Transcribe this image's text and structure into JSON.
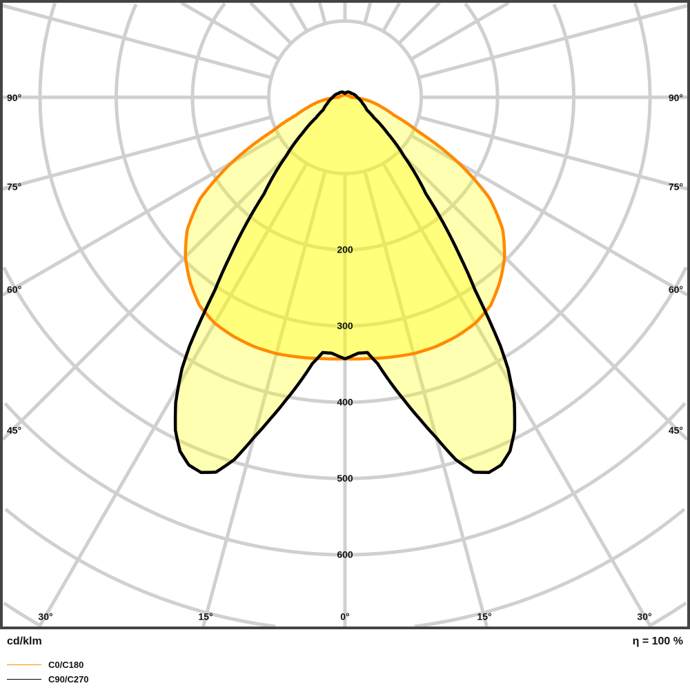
{
  "chart_data": {
    "type": "polar",
    "unit_label": "cd/klm",
    "efficiency_label": "η = 100 %",
    "radial_ticks": [
      100,
      200,
      300,
      400,
      500,
      600,
      700,
      800
    ],
    "radial_tick_labels": [
      "200",
      "300",
      "400",
      "500",
      "600"
    ],
    "angle_ticks_deg": [
      0,
      15,
      30,
      45,
      60,
      75,
      90,
      105,
      120,
      135,
      150,
      165,
      180
    ],
    "angle_labels_left": [
      "90°",
      "75°",
      "60°",
      "45°",
      "30°",
      "15°"
    ],
    "angle_label_center": "0°",
    "angle_labels_right": [
      "15°",
      "30°",
      "45°",
      "60°",
      "75°",
      "90°"
    ],
    "grid": true,
    "symmetric": true,
    "series": [
      {
        "name": "C0/C180",
        "color": "#ff8a00",
        "angles_deg": [
          0,
          5,
          10,
          15,
          20,
          25,
          30,
          35,
          40,
          45,
          50,
          55,
          60,
          65,
          70,
          75,
          80,
          85,
          90,
          120,
          180
        ],
        "values": [
          343,
          344,
          346,
          348,
          348,
          346,
          342,
          333,
          316,
          296,
          270,
          232,
          172,
          105,
          68,
          50,
          36,
          22,
          8,
          4,
          3
        ]
      },
      {
        "name": "C90/C270",
        "color": "#000000",
        "angles_deg": [
          0,
          3,
          5,
          7,
          9,
          11,
          13,
          15,
          17,
          19,
          21,
          23,
          25,
          27,
          29,
          31,
          32,
          34,
          36,
          40,
          45,
          50,
          55,
          60,
          70,
          80,
          90,
          120,
          150,
          180
        ],
        "values": [
          343,
          336,
          336,
          352,
          378,
          404,
          432,
          462,
          497,
          520,
          527,
          524,
          512,
          490,
          458,
          415,
          385,
          305,
          255,
          165,
          110,
          72,
          46,
          33,
          25,
          20,
          16,
          10,
          8,
          5
        ]
      }
    ],
    "fill_color": "#ffff00",
    "grid_color": "#d0d0d0"
  }
}
